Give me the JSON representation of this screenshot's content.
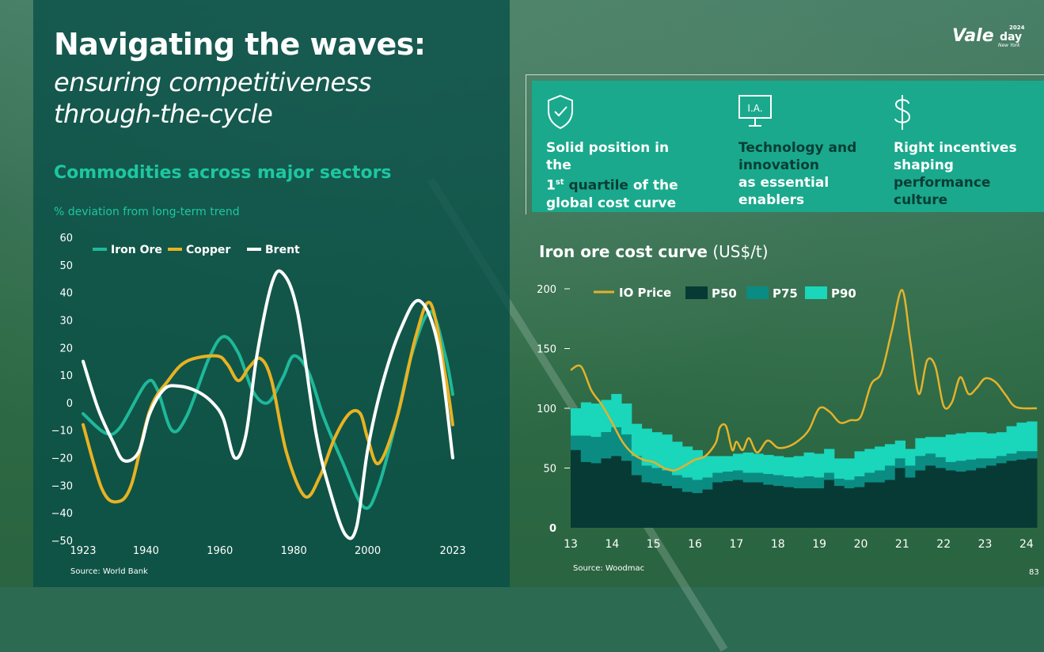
{
  "title": {
    "bold": "Navigating the waves:",
    "italic_line1": "ensuring competitiveness",
    "italic_line2": "through-the-cycle"
  },
  "logo": {
    "brand": "Vale",
    "event": "day",
    "year": "2024",
    "city": "New York"
  },
  "pillars": [
    {
      "line1": "Solid position in the",
      "line2_prefix": "1",
      "line2_sup": "st",
      "line2_mid": " quartile",
      "line2_suffix": " of the",
      "line3": "global cost curve",
      "icon": "shield-check-icon"
    },
    {
      "lines": [
        "Technology and",
        "innovation",
        "as essential",
        "enablers"
      ],
      "icon": "monitor-ai-icon",
      "icon_label": "I.A."
    },
    {
      "lines": [
        "Right incentives",
        "shaping",
        "performance",
        "culture"
      ],
      "icon": "dollar-icon"
    }
  ],
  "left_chart_title": "Commodities across major sectors",
  "right_chart_title": {
    "bold": "Iron ore cost curve",
    "unit": " (US$/t)"
  },
  "colors": {
    "iron_ore": "#1fb89a",
    "copper": "#e8b222",
    "brent": "#ffffff",
    "p50": "#073a34",
    "p75": "#0a8c83",
    "p90": "#1ad6bb",
    "io_price": "#e4b22b",
    "accent_text": "#1dc7a1"
  },
  "page_number": "83",
  "chart_data": [
    {
      "type": "line",
      "subtitle": "% deviation from long-term trend",
      "xlim": [
        1923,
        2023
      ],
      "ylim": [
        -50,
        60
      ],
      "yticks": [
        60,
        50,
        40,
        30,
        20,
        10,
        0,
        -10,
        -20,
        -30,
        -40,
        -50
      ],
      "xticks": [
        1923,
        1940,
        1960,
        1980,
        2000,
        2023
      ],
      "legend": "top-left",
      "series": [
        {
          "name": "Iron Ore",
          "points": [
            [
              1923,
              -4
            ],
            [
              1929,
              -11
            ],
            [
              1933,
              -9
            ],
            [
              1940,
              7
            ],
            [
              1943,
              5
            ],
            [
              1947,
              -10
            ],
            [
              1951,
              -5
            ],
            [
              1957,
              16
            ],
            [
              1961,
              24
            ],
            [
              1965,
              18
            ],
            [
              1969,
              4
            ],
            [
              1973,
              0
            ],
            [
              1977,
              9
            ],
            [
              1980,
              17
            ],
            [
              1984,
              11
            ],
            [
              1988,
              -5
            ],
            [
              1993,
              -21
            ],
            [
              1999,
              -38
            ],
            [
              2003,
              -30
            ],
            [
              2008,
              -5
            ],
            [
              2012,
              18
            ],
            [
              2017,
              33
            ],
            [
              2021,
              17
            ],
            [
              2023,
              3
            ]
          ]
        },
        {
          "name": "Copper",
          "points": [
            [
              1923,
              -8
            ],
            [
              1928,
              -31
            ],
            [
              1932,
              -36
            ],
            [
              1936,
              -30
            ],
            [
              1941,
              -3
            ],
            [
              1946,
              8
            ],
            [
              1951,
              15
            ],
            [
              1959,
              17
            ],
            [
              1962,
              14
            ],
            [
              1965,
              8
            ],
            [
              1968,
              13
            ],
            [
              1971,
              16
            ],
            [
              1974,
              8
            ],
            [
              1978,
              -18
            ],
            [
              1983,
              -34
            ],
            [
              1987,
              -27
            ],
            [
              1991,
              -13
            ],
            [
              1995,
              -4
            ],
            [
              1998,
              -4
            ],
            [
              2000,
              -13
            ],
            [
              2003,
              -22
            ],
            [
              2008,
              -5
            ],
            [
              2013,
              24
            ],
            [
              2017,
              36
            ],
            [
              2021,
              10
            ],
            [
              2023,
              -8
            ]
          ]
        },
        {
          "name": "Brent",
          "points": [
            [
              1923,
              15
            ],
            [
              1927,
              -2
            ],
            [
              1931,
              -14
            ],
            [
              1934,
              -21
            ],
            [
              1938,
              -18
            ],
            [
              1941,
              -4
            ],
            [
              1945,
              5
            ],
            [
              1949,
              6
            ],
            [
              1954,
              4
            ],
            [
              1958,
              0
            ],
            [
              1961,
              -6
            ],
            [
              1964,
              -20
            ],
            [
              1967,
              -12
            ],
            [
              1970,
              17
            ],
            [
              1974,
              43
            ],
            [
              1977,
              47
            ],
            [
              1981,
              33
            ],
            [
              1986,
              -11
            ],
            [
              1990,
              -33
            ],
            [
              1994,
              -48
            ],
            [
              1997,
              -45
            ],
            [
              2000,
              -17
            ],
            [
              2004,
              7
            ],
            [
              2009,
              27
            ],
            [
              2014,
              37
            ],
            [
              2019,
              21
            ],
            [
              2023,
              -20
            ]
          ]
        }
      ]
    },
    {
      "type": "bar",
      "xlabel_ticks": [
        "13",
        "14",
        "15",
        "16",
        "17",
        "18",
        "19",
        "20",
        "21",
        "22",
        "23",
        "24"
      ],
      "x_range": [
        13,
        24.25
      ],
      "ylim": [
        0,
        200
      ],
      "yticks": [
        0,
        50,
        100,
        150,
        200
      ],
      "legend": "top",
      "stacked_levels": {
        "categories_note": "quarterly, 2013Q1-2024Q2",
        "P50": [
          65,
          55,
          54,
          58,
          60,
          56,
          44,
          38,
          37,
          35,
          33,
          30,
          29,
          32,
          38,
          39,
          40,
          38,
          38,
          36,
          35,
          34,
          33,
          33,
          33,
          40,
          35,
          33,
          34,
          38,
          38,
          40,
          50,
          42,
          48,
          52,
          50,
          48,
          47,
          48,
          50,
          52,
          54,
          56,
          57,
          58
        ],
        "P75": [
          77,
          77,
          76,
          80,
          84,
          78,
          60,
          52,
          50,
          48,
          44,
          42,
          40,
          42,
          46,
          47,
          48,
          46,
          46,
          45,
          44,
          43,
          42,
          43,
          42,
          46,
          41,
          40,
          43,
          46,
          48,
          52,
          58,
          52,
          60,
          62,
          59,
          55,
          56,
          57,
          58,
          58,
          60,
          62,
          64,
          64
        ],
        "P90": [
          100,
          105,
          104,
          107,
          112,
          104,
          87,
          83,
          80,
          78,
          72,
          68,
          65,
          60,
          60,
          60,
          62,
          63,
          62,
          61,
          60,
          59,
          60,
          63,
          62,
          66,
          58,
          58,
          64,
          66,
          68,
          70,
          73,
          66,
          75,
          76,
          76,
          78,
          79,
          80,
          80,
          79,
          80,
          85,
          88,
          89
        ]
      },
      "io_price": [
        [
          13,
          132
        ],
        [
          13.25,
          135
        ],
        [
          13.5,
          115
        ],
        [
          13.75,
          103
        ],
        [
          14,
          88
        ],
        [
          14.25,
          72
        ],
        [
          14.5,
          62
        ],
        [
          14.75,
          57
        ],
        [
          15,
          55
        ],
        [
          15.25,
          50
        ],
        [
          15.5,
          48
        ],
        [
          15.75,
          52
        ],
        [
          16,
          57
        ],
        [
          16.25,
          60
        ],
        [
          16.5,
          71
        ],
        [
          16.6,
          84
        ],
        [
          16.75,
          85
        ],
        [
          16.9,
          65
        ],
        [
          17,
          72
        ],
        [
          17.15,
          65
        ],
        [
          17.3,
          75
        ],
        [
          17.5,
          63
        ],
        [
          17.75,
          73
        ],
        [
          18,
          67
        ],
        [
          18.25,
          68
        ],
        [
          18.5,
          73
        ],
        [
          18.75,
          82
        ],
        [
          19,
          100
        ],
        [
          19.25,
          97
        ],
        [
          19.5,
          88
        ],
        [
          19.75,
          90
        ],
        [
          20,
          93
        ],
        [
          20.25,
          120
        ],
        [
          20.5,
          130
        ],
        [
          20.75,
          165
        ],
        [
          21,
          199
        ],
        [
          21.2,
          155
        ],
        [
          21.4,
          112
        ],
        [
          21.6,
          140
        ],
        [
          21.8,
          135
        ],
        [
          22,
          102
        ],
        [
          22.2,
          105
        ],
        [
          22.4,
          126
        ],
        [
          22.6,
          112
        ],
        [
          22.8,
          117
        ],
        [
          23,
          125
        ],
        [
          23.25,
          122
        ],
        [
          23.5,
          111
        ],
        [
          23.75,
          101
        ],
        [
          24.25,
          100
        ]
      ],
      "legend_labels": [
        "IO Price",
        "P50",
        "P75",
        "P90"
      ]
    }
  ],
  "sources": {
    "left": "Source: World Bank",
    "right": "Source: Woodmac"
  }
}
